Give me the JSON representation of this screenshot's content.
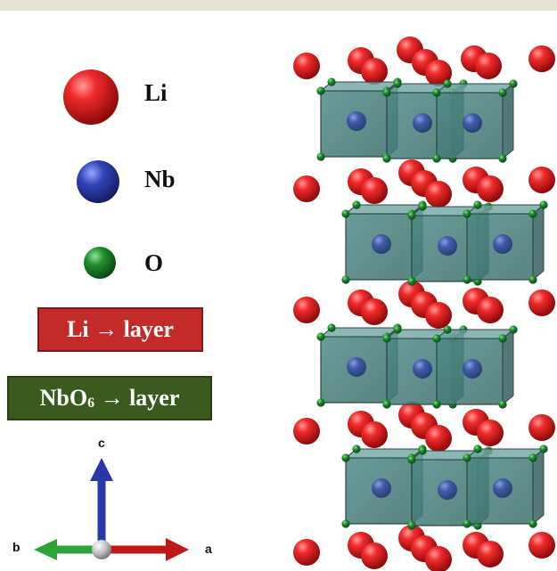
{
  "legend": [
    {
      "label": "Li",
      "color": "#d81e1e"
    },
    {
      "label": "Nb",
      "color": "#2c3a9e"
    },
    {
      "label": "O",
      "color": "#1f7a2a"
    }
  ],
  "layer_boxes": {
    "li_layer": "Li → layer",
    "nbo6_layer_prefix": "NbO",
    "nbo6_layer_sub": "6",
    "nbo6_layer_suffix": " → layer"
  },
  "axes": {
    "c": "c",
    "b": "b",
    "a": "a"
  }
}
